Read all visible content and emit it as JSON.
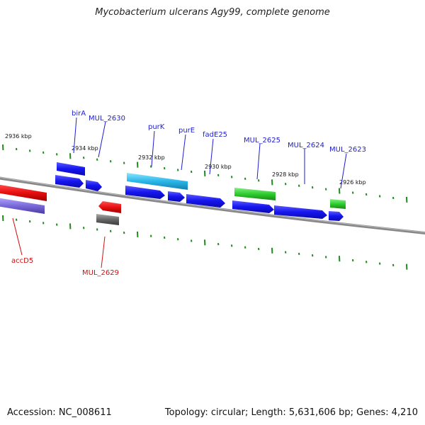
{
  "title": "Mycobacterium ulcerans Agy99, complete genome",
  "accession": "Accession: NC_008611",
  "summary": "Topology: circular; Length: 5,631,606 bp; Genes: 4,210",
  "colors": {
    "forward_cds": "#1a1aee",
    "reverse_cds": "#e81010",
    "trna": "#2ecc2e",
    "rrna": "#29b6e8",
    "misc": "#7a6ad8",
    "pseudo": "#666666",
    "backbone": "#888888",
    "ticks": "#1e8a1e"
  },
  "kbp_labels": [
    "2936 kbp",
    "2934 kbp",
    "2932 kbp",
    "2930 kbp",
    "2928 kbp",
    "2926 kbp"
  ],
  "gene_labels_forward": [
    "birA",
    "MUL_2630",
    "purK",
    "purE",
    "fadE25",
    "MUL_2625",
    "MUL_2624",
    "MUL_2623"
  ],
  "gene_labels_reverse": [
    "accD5",
    "MUL_2629"
  ]
}
